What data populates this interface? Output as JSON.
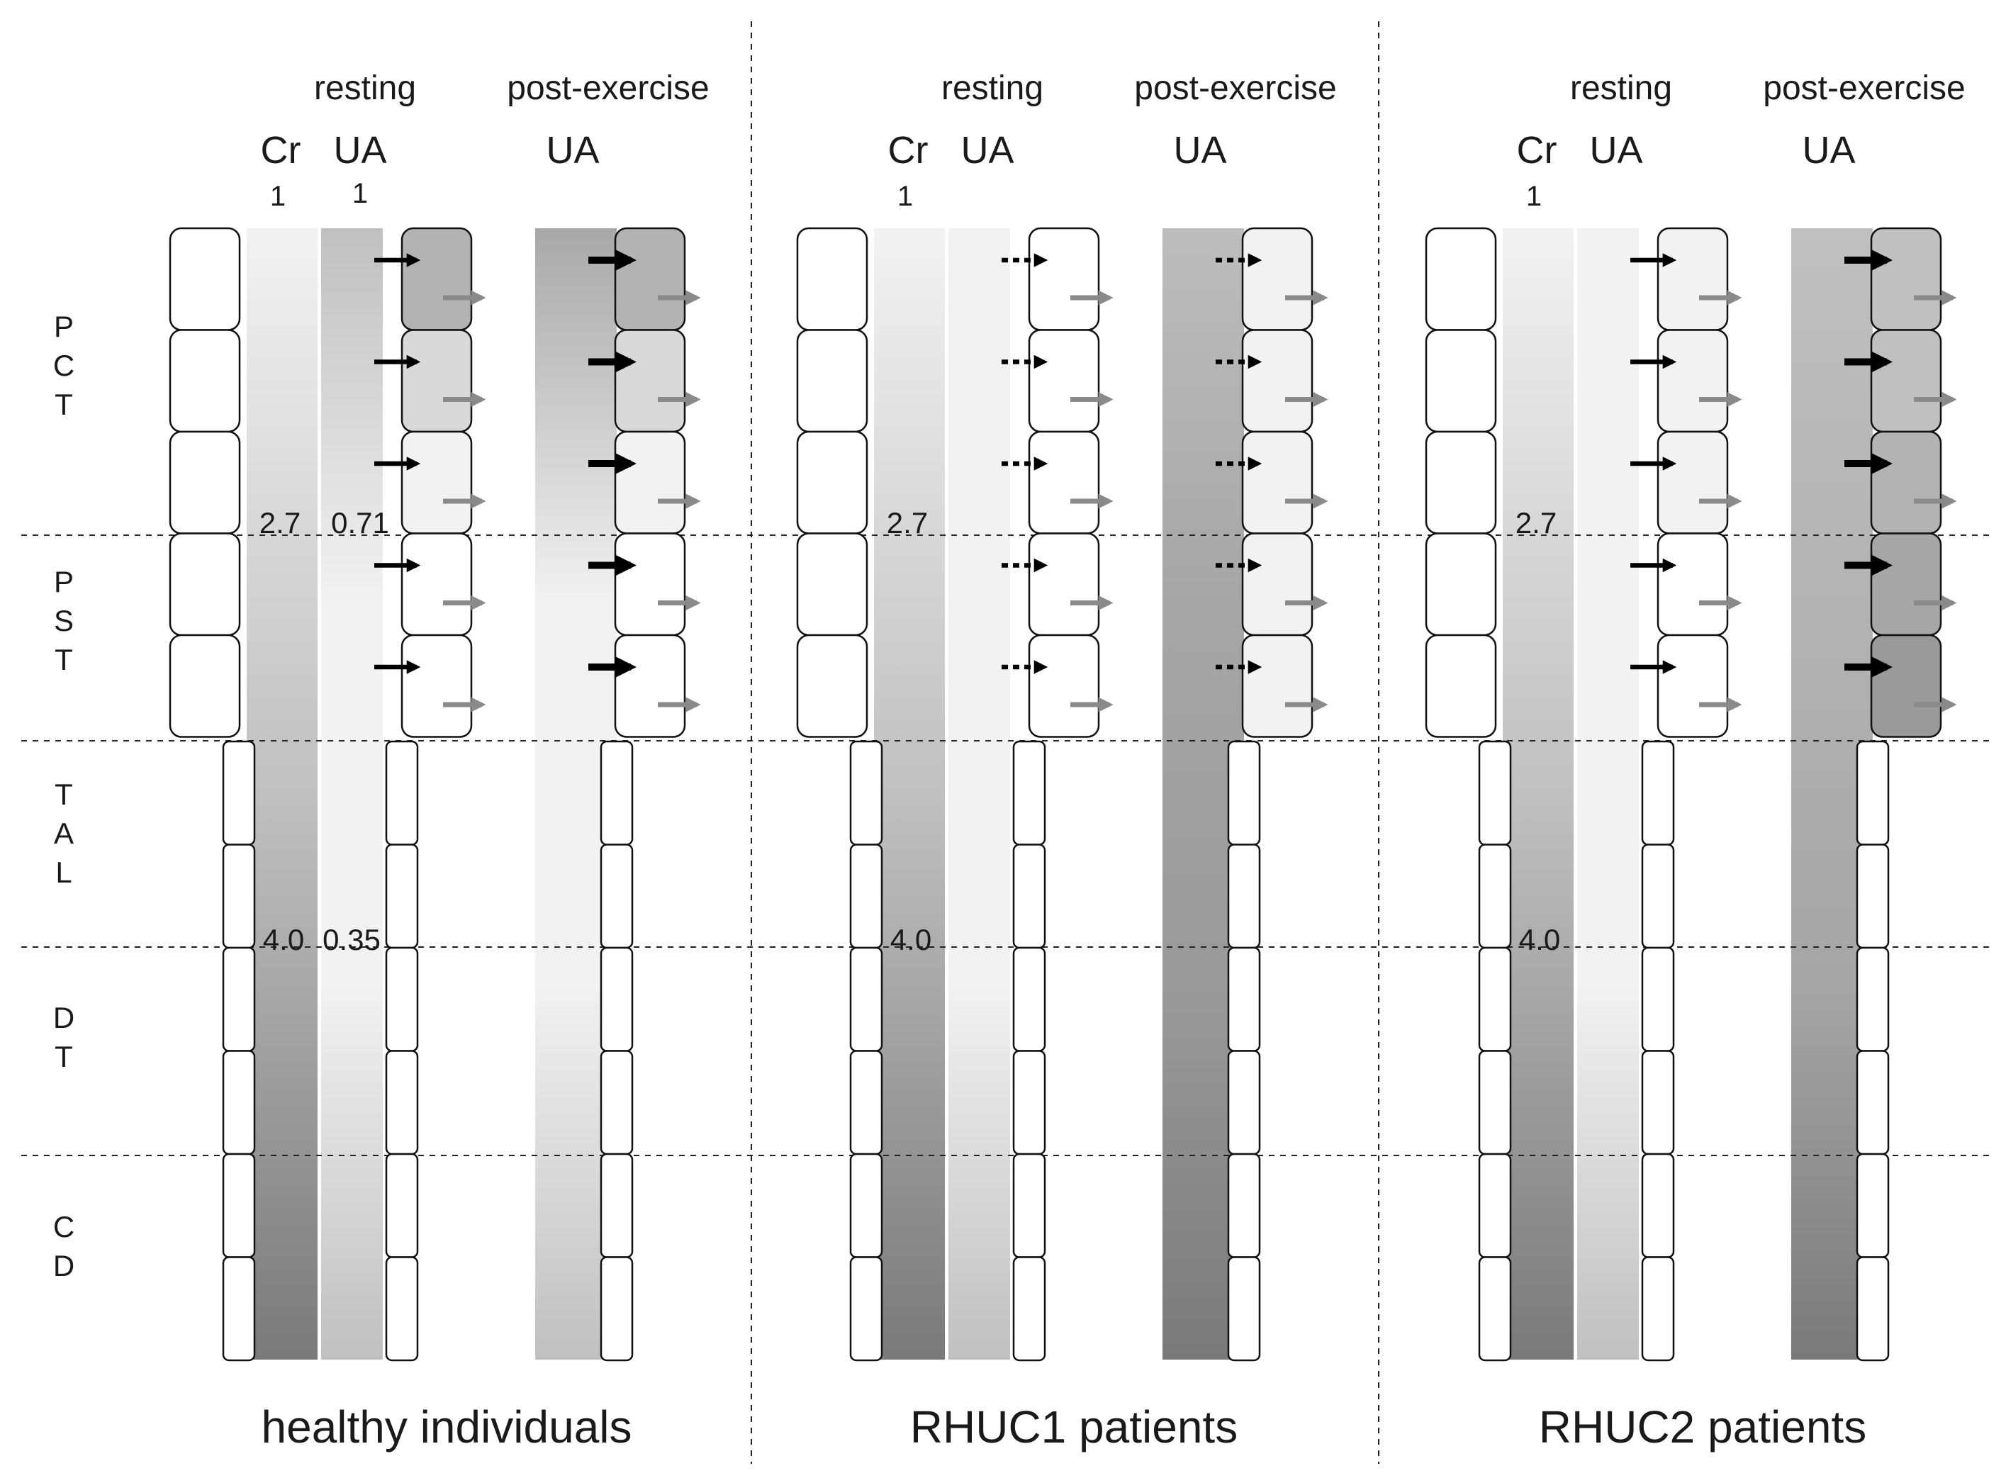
{
  "segment_labels": [
    {
      "id": "pct",
      "letters": [
        "P",
        "C",
        "T"
      ]
    },
    {
      "id": "pst",
      "letters": [
        "P",
        "S",
        "T"
      ]
    },
    {
      "id": "tal",
      "letters": [
        "T",
        "A",
        "L"
      ]
    },
    {
      "id": "dt",
      "letters": [
        "D",
        "T"
      ]
    },
    {
      "id": "cd",
      "letters": [
        "C",
        "D"
      ]
    }
  ],
  "panels": [
    {
      "id": "healthy",
      "title": "healthy individuals",
      "resting_label": "resting",
      "post_label": "post-exercise",
      "cr_label": "Cr",
      "ua_label": "UA",
      "post_ua_label": "UA",
      "cr_top_value": "1",
      "ua_top_value": "1",
      "cr_mid_value": "2.7",
      "ua_mid_value": "0.71",
      "cr_low_value": "4.0",
      "ua_low_value": "0.35",
      "resting_arrow": "solid",
      "post_arrow": "solid-bold",
      "resting_cell_colors": [
        "#b3b3b3",
        "#d9d9d9",
        "#f2f2f2",
        "#ffffff",
        "#ffffff"
      ],
      "post_cell_colors": [
        "#b3b3b3",
        "#d9d9d9",
        "#f2f2f2",
        "#ffffff",
        "#ffffff"
      ],
      "cr_gradient": [
        "#f2f2f2",
        "#c0c0c0",
        "#7a7a7a"
      ],
      "ua_gradient": [
        "#c0c0c0",
        "#f2f2f2",
        "#f2f2f2",
        "#c0c0c0"
      ],
      "post_gradient": [
        "#a8a8a8",
        "#f2f2f2",
        "#f2f2f2",
        "#c0c0c0"
      ],
      "show_ua_top_value": true,
      "show_ua_values": true
    },
    {
      "id": "rhuc1",
      "title": "RHUC1 patients",
      "resting_label": "resting",
      "post_label": "post-exercise",
      "cr_label": "Cr",
      "ua_label": "UA",
      "post_ua_label": "UA",
      "cr_top_value": "1",
      "ua_top_value": "",
      "cr_mid_value": "2.7",
      "ua_mid_value": "",
      "cr_low_value": "4.0",
      "ua_low_value": "",
      "resting_arrow": "dotted",
      "post_arrow": "dotted",
      "resting_cell_colors": [
        "#ffffff",
        "#ffffff",
        "#ffffff",
        "#ffffff",
        "#ffffff"
      ],
      "post_cell_colors": [
        "#f2f2f2",
        "#f2f2f2",
        "#f2f2f2",
        "#f2f2f2",
        "#f2f2f2"
      ],
      "cr_gradient": [
        "#f2f2f2",
        "#c0c0c0",
        "#7a7a7a"
      ],
      "ua_gradient": [
        "#f2f2f2",
        "#f2f2f2",
        "#f2f2f2",
        "#c0c0c0"
      ],
      "post_gradient": [
        "#bdbdbd",
        "#a6a6a6",
        "#9a9a9a",
        "#7a7a7a"
      ],
      "show_ua_top_value": false,
      "show_ua_values": false
    },
    {
      "id": "rhuc2",
      "title": "RHUC2 patients",
      "resting_label": "resting",
      "post_label": "post-exercise",
      "cr_label": "Cr",
      "ua_label": "UA",
      "post_ua_label": "UA",
      "cr_top_value": "1",
      "ua_top_value": "",
      "cr_mid_value": "2.7",
      "ua_mid_value": "",
      "cr_low_value": "4.0",
      "ua_low_value": "",
      "resting_arrow": "solid",
      "post_arrow": "solid-bold",
      "resting_cell_colors": [
        "#f2f2f2",
        "#f2f2f2",
        "#f2f2f2",
        "#ffffff",
        "#ffffff"
      ],
      "post_cell_colors": [
        "#c0c0c0",
        "#c0c0c0",
        "#b3b3b3",
        "#a6a6a6",
        "#9a9a9a"
      ],
      "cr_gradient": [
        "#f2f2f2",
        "#c0c0c0",
        "#7a7a7a"
      ],
      "ua_gradient": [
        "#f2f2f2",
        "#f2f2f2",
        "#f2f2f2",
        "#c0c0c0"
      ],
      "post_gradient": [
        "#c0c0c0",
        "#b3b3b3",
        "#a6a6a6",
        "#7a7a7a"
      ],
      "show_ua_top_value": false,
      "show_ua_values": false
    }
  ]
}
